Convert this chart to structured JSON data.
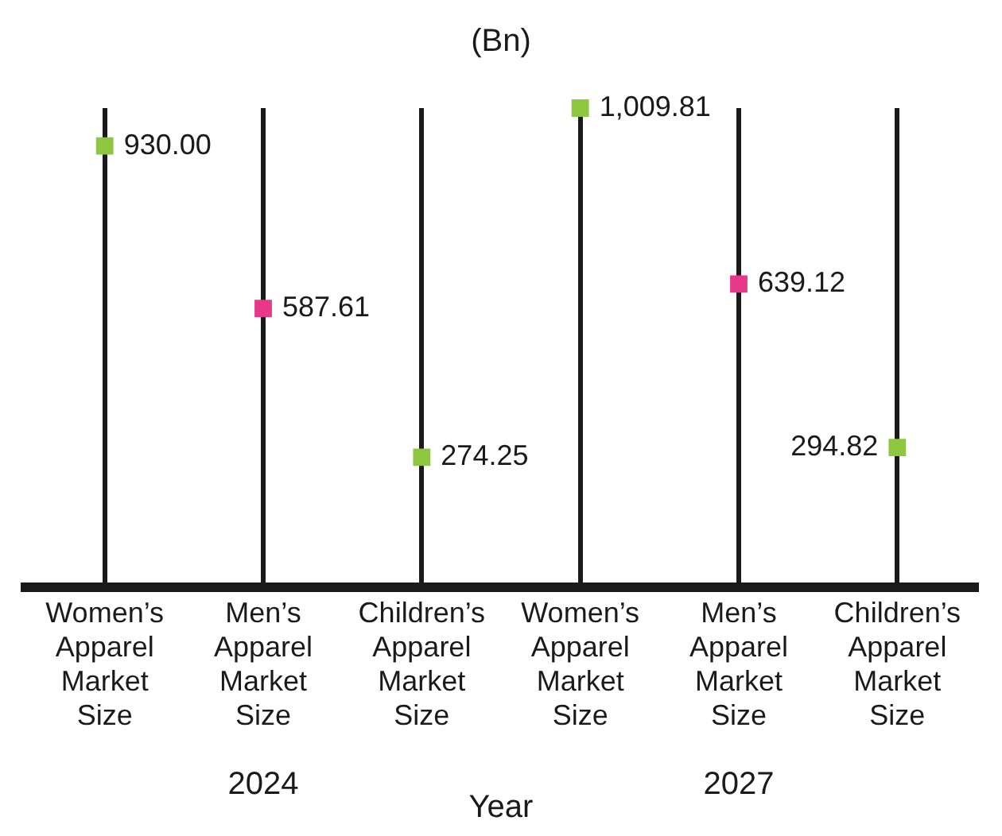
{
  "chart_data": {
    "type": "lollipop",
    "ylabel": "(Bn)",
    "xlabel": "Year",
    "categories": [
      "Women’s Apparel Market Size",
      "Men’s Apparel Market Size",
      "Children’s Apparel Market Size",
      "Women’s Apparel Market Size",
      "Men’s Apparel Market Size",
      "Children’s Apparel Market Size"
    ],
    "values": [
      930.0,
      587.61,
      274.25,
      1009.81,
      639.12,
      294.82
    ],
    "value_labels": [
      "930.00",
      "587.61",
      "274.25",
      "1,009.81",
      "639.12",
      "294.82"
    ],
    "colors": [
      "#8dc63f",
      "#e8388a",
      "#8dc63f",
      "#8dc63f",
      "#e8388a",
      "#8dc63f"
    ],
    "annotations": [
      "2024",
      "2027"
    ],
    "marker": "square",
    "grid": "x",
    "legend": false
  }
}
